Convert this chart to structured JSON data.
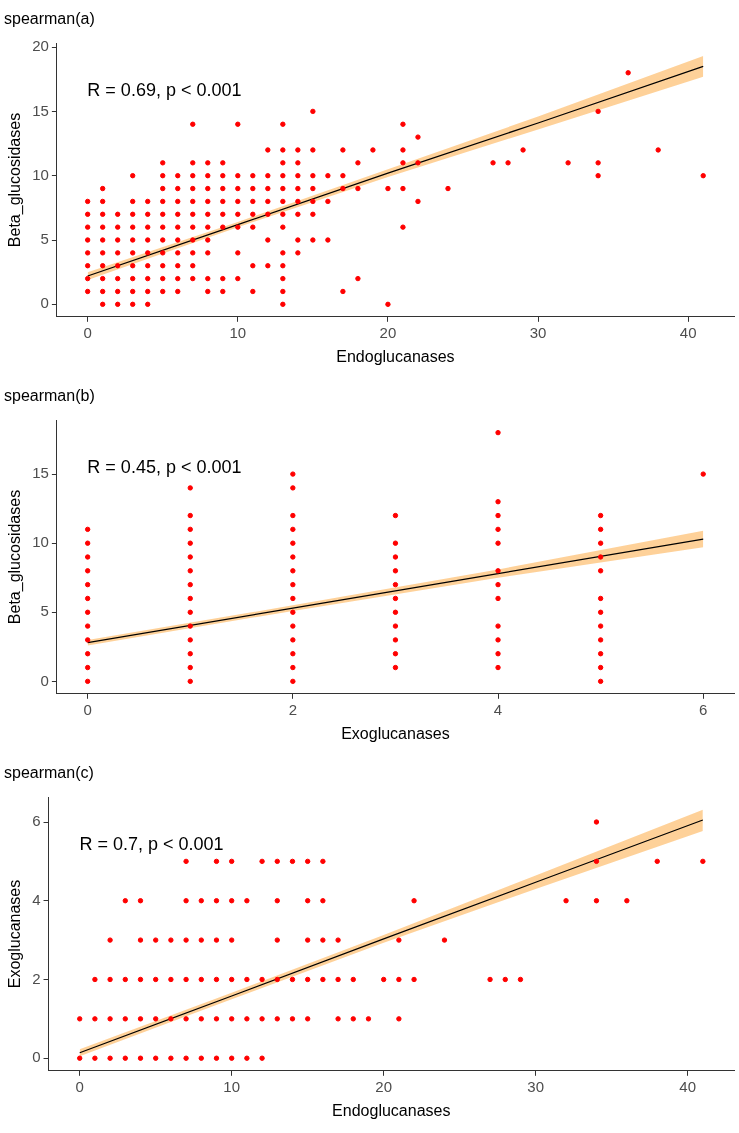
{
  "chart_data": [
    {
      "type": "scatter",
      "title": "spearman(a)",
      "xlabel": "Endoglucanases",
      "ylabel": "Beta_glucosidases",
      "annotations": [
        "R = 0.69, p < 0.001"
      ],
      "xlim": [
        -2.05,
        43.05
      ],
      "ylim": [
        -0.97,
        20.3
      ],
      "xticks": [
        0,
        10,
        20,
        30,
        40
      ],
      "yticks": [
        0,
        5,
        10,
        15,
        20
      ],
      "grid": false,
      "legend": false,
      "series": [
        {
          "type": "scatter",
          "marker": "circle",
          "color": "#ff0000",
          "x": [
            0,
            0,
            0,
            0,
            0,
            0,
            0,
            0,
            1,
            1,
            1,
            1,
            1,
            1,
            1,
            1,
            1,
            1,
            2,
            2,
            2,
            2,
            2,
            2,
            2,
            2,
            3,
            3,
            3,
            3,
            3,
            3,
            3,
            3,
            3,
            3,
            4,
            4,
            4,
            4,
            4,
            4,
            4,
            4,
            4,
            5,
            5,
            5,
            5,
            5,
            5,
            5,
            5,
            5,
            5,
            5,
            6,
            6,
            6,
            6,
            6,
            6,
            6,
            6,
            6,
            6,
            7,
            7,
            7,
            7,
            7,
            7,
            7,
            7,
            7,
            7,
            7,
            8,
            8,
            8,
            8,
            8,
            8,
            8,
            8,
            8,
            8,
            9,
            9,
            9,
            9,
            9,
            9,
            9,
            9,
            10,
            10,
            10,
            10,
            10,
            10,
            10,
            10,
            11,
            11,
            11,
            11,
            11,
            11,
            11,
            12,
            12,
            12,
            12,
            12,
            12,
            12,
            13,
            13,
            13,
            13,
            13,
            13,
            13,
            13,
            13,
            13,
            13,
            13,
            13,
            14,
            14,
            14,
            14,
            14,
            14,
            14,
            14,
            15,
            15,
            15,
            15,
            15,
            15,
            15,
            16,
            16,
            16,
            17,
            17,
            17,
            17,
            18,
            18,
            18,
            19,
            20,
            20,
            21,
            21,
            21,
            21,
            21,
            22,
            22,
            22,
            24,
            27,
            28,
            29,
            32,
            34,
            34,
            34,
            36,
            38,
            41
          ],
          "values": [
            1,
            2,
            3,
            4,
            5,
            6,
            7,
            8,
            0,
            1,
            2,
            3,
            4,
            5,
            6,
            7,
            8,
            9,
            0,
            1,
            2,
            3,
            4,
            5,
            6,
            7,
            0,
            1,
            2,
            3,
            4,
            5,
            6,
            7,
            8,
            10,
            0,
            1,
            2,
            3,
            4,
            5,
            6,
            7,
            8,
            1,
            2,
            3,
            4,
            5,
            6,
            7,
            8,
            9,
            10,
            11,
            1,
            2,
            3,
            4,
            5,
            6,
            7,
            8,
            9,
            10,
            2,
            3,
            4,
            5,
            6,
            7,
            8,
            9,
            10,
            11,
            14,
            1,
            2,
            4,
            5,
            6,
            7,
            8,
            9,
            10,
            11,
            1,
            2,
            6,
            7,
            8,
            9,
            10,
            11,
            2,
            4,
            6,
            7,
            8,
            9,
            10,
            14,
            1,
            3,
            6,
            7,
            8,
            9,
            10,
            3,
            5,
            7,
            8,
            9,
            10,
            12,
            0,
            1,
            2,
            3,
            4,
            6,
            7,
            8,
            9,
            10,
            11,
            12,
            14,
            4,
            5,
            7,
            8,
            9,
            10,
            11,
            12,
            5,
            7,
            8,
            9,
            10,
            12,
            15,
            5,
            8,
            10,
            1,
            9,
            10,
            12,
            2,
            9,
            11,
            12,
            0,
            9,
            6,
            9,
            11,
            12,
            14,
            8,
            11,
            13,
            9,
            11,
            11,
            12,
            11,
            10,
            11,
            15,
            18,
            12,
            10
          ]
        },
        {
          "type": "line",
          "marker": "none",
          "color": "#000000",
          "x": [
            0,
            10,
            20,
            30,
            41
          ],
          "values": [
            2.2,
            6.2,
            10.2,
            14.1,
            18.5
          ],
          "lower": [
            1.9,
            6.0,
            9.9,
            13.6,
            17.7
          ],
          "upper": [
            2.5,
            6.4,
            10.5,
            14.6,
            19.3
          ]
        }
      ]
    },
    {
      "type": "scatter",
      "title": "spearman(b)",
      "xlabel": "Exoglucanases",
      "ylabel": "Beta_glucosidases",
      "annotations": [
        "R = 0.45, p < 0.001"
      ],
      "xlim": [
        -0.3,
        6.3
      ],
      "ylim": [
        -0.9,
        18.9
      ],
      "xticks": [
        0,
        2,
        4,
        6
      ],
      "yticks": [
        0,
        5,
        10,
        15
      ],
      "grid": false,
      "legend": false,
      "series": [
        {
          "type": "scatter",
          "marker": "circle",
          "color": "#ff0000",
          "x": [
            0,
            0,
            0,
            0,
            0,
            0,
            0,
            0,
            0,
            0,
            0,
            0,
            1,
            1,
            1,
            1,
            1,
            1,
            1,
            1,
            1,
            1,
            1,
            1,
            1,
            1,
            2,
            2,
            2,
            2,
            2,
            2,
            2,
            2,
            2,
            2,
            2,
            2,
            2,
            2,
            2,
            3,
            3,
            3,
            3,
            3,
            3,
            3,
            3,
            3,
            3,
            3,
            4,
            4,
            4,
            4,
            4,
            4,
            4,
            4,
            4,
            4,
            4,
            4,
            5,
            5,
            5,
            5,
            5,
            5,
            5,
            5,
            5,
            5,
            5,
            5,
            6
          ],
          "values": [
            0,
            1,
            2,
            3,
            4,
            5,
            6,
            7,
            8,
            9,
            10,
            11,
            0,
            1,
            2,
            3,
            4,
            5,
            6,
            7,
            8,
            9,
            10,
            11,
            12,
            14,
            0,
            1,
            2,
            3,
            4,
            5,
            6,
            7,
            8,
            9,
            10,
            11,
            12,
            14,
            15,
            1,
            2,
            3,
            4,
            5,
            6,
            7,
            8,
            9,
            10,
            12,
            1,
            2,
            3,
            4,
            6,
            7,
            8,
            10,
            11,
            12,
            13,
            18,
            0,
            1,
            2,
            3,
            4,
            5,
            6,
            8,
            9,
            10,
            11,
            12,
            15
          ]
        },
        {
          "type": "line",
          "marker": "none",
          "color": "#000000",
          "x": [
            0,
            2,
            4,
            6
          ],
          "values": [
            2.8,
            5.3,
            7.8,
            10.3
          ],
          "lower": [
            2.6,
            5.1,
            7.5,
            9.7
          ],
          "upper": [
            3.0,
            5.5,
            8.1,
            10.9
          ]
        }
      ]
    },
    {
      "type": "scatter",
      "title": "spearman(c)",
      "xlabel": "Endoglucanases",
      "ylabel": "Exoglucanases",
      "annotations": [
        "R = 0.7, p < 0.001"
      ],
      "xlim": [
        -2.05,
        43.05
      ],
      "ylim": [
        -0.32,
        6.63
      ],
      "xticks": [
        0,
        10,
        20,
        30,
        40
      ],
      "yticks": [
        0,
        2,
        4,
        6
      ],
      "grid": false,
      "legend": false,
      "series": [
        {
          "type": "scatter",
          "marker": "circle",
          "color": "#ff0000",
          "x": [
            0,
            0,
            1,
            1,
            1,
            2,
            2,
            2,
            2,
            3,
            3,
            3,
            3,
            4,
            4,
            4,
            4,
            4,
            5,
            5,
            5,
            5,
            6,
            6,
            6,
            6,
            7,
            7,
            7,
            7,
            7,
            7,
            8,
            8,
            8,
            8,
            8,
            9,
            9,
            9,
            9,
            9,
            9,
            10,
            10,
            10,
            10,
            10,
            10,
            11,
            11,
            11,
            11,
            12,
            12,
            12,
            12,
            13,
            13,
            13,
            13,
            13,
            14,
            14,
            14,
            15,
            15,
            15,
            15,
            15,
            16,
            16,
            16,
            16,
            17,
            17,
            17,
            18,
            18,
            19,
            20,
            21,
            21,
            21,
            22,
            22,
            24,
            27,
            28,
            29,
            32,
            34,
            34,
            34,
            36,
            38,
            41
          ],
          "values": [
            0,
            1,
            0,
            1,
            2,
            0,
            1,
            2,
            3,
            0,
            1,
            2,
            4,
            0,
            1,
            2,
            3,
            4,
            0,
            1,
            2,
            3,
            0,
            1,
            2,
            3,
            0,
            1,
            2,
            3,
            4,
            5,
            0,
            1,
            2,
            3,
            4,
            0,
            1,
            2,
            3,
            4,
            5,
            0,
            1,
            2,
            3,
            4,
            5,
            0,
            1,
            2,
            4,
            0,
            1,
            2,
            5,
            1,
            2,
            3,
            4,
            5,
            1,
            2,
            5,
            1,
            2,
            3,
            4,
            5,
            2,
            3,
            4,
            5,
            1,
            2,
            3,
            1,
            2,
            1,
            2,
            1,
            2,
            3,
            2,
            4,
            3,
            2,
            2,
            2,
            4,
            4,
            5,
            6,
            4,
            5,
            5
          ]
        },
        {
          "type": "line",
          "marker": "none",
          "color": "#000000",
          "x": [
            0,
            10,
            20,
            30,
            41
          ],
          "values": [
            0.14,
            1.58,
            3.03,
            4.47,
            6.05
          ],
          "lower": [
            0.05,
            1.5,
            2.93,
            4.3,
            5.77
          ],
          "upper": [
            0.23,
            1.66,
            3.13,
            4.64,
            6.31
          ]
        }
      ]
    }
  ]
}
